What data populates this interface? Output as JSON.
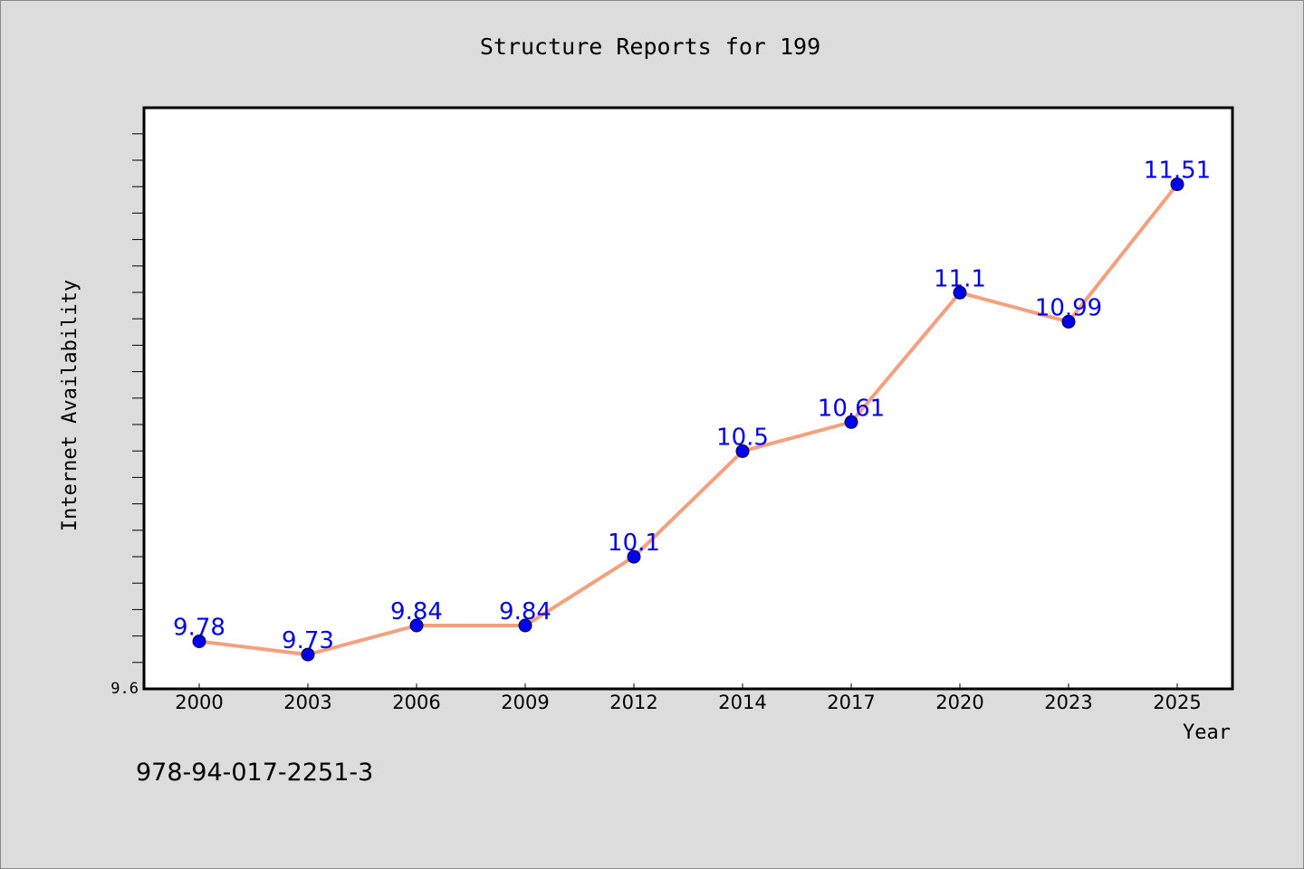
{
  "chart_data": {
    "type": "line",
    "title": "Structure Reports for 199",
    "xlabel": "Year",
    "ylabel": "Internet Availability",
    "categories": [
      "2000",
      "2003",
      "2006",
      "2009",
      "2012",
      "2014",
      "2017",
      "2020",
      "2023",
      "2025"
    ],
    "values": [
      9.78,
      9.73,
      9.84,
      9.84,
      10.1,
      10.5,
      10.61,
      11.1,
      10.99,
      11.51
    ],
    "data_labels": [
      "9.78",
      "9.73",
      "9.84",
      "9.84",
      "10.1",
      "10.5",
      "10.61",
      "11.1",
      "10.99",
      "11.51"
    ],
    "ylim": [
      9.6,
      11.8
    ],
    "ytick_labels": [
      "9.6"
    ],
    "line_color": "#f4a07e",
    "marker_color": "#0000ee",
    "label_color": "#0000ee",
    "grid": false,
    "legend": "none"
  },
  "footer": {
    "code": "978-94-017-2251-3"
  }
}
